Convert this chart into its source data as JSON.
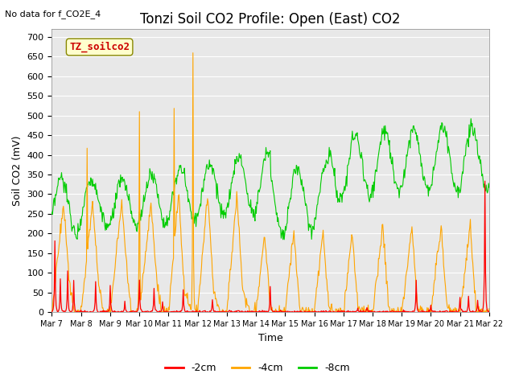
{
  "title": "Tonzi Soil CO2 Profile: Open (East) CO2",
  "subtitle": "No data for f_CO2E_4",
  "ylabel": "Soil CO2 (mV)",
  "xlabel": "Time",
  "legend_label": "TZ_soilco2",
  "series_labels": [
    "-2cm",
    "-4cm",
    "-8cm"
  ],
  "series_colors": [
    "#ff0000",
    "#ffa500",
    "#00cc00"
  ],
  "ylim": [
    0,
    720
  ],
  "yticks": [
    0,
    50,
    100,
    150,
    200,
    250,
    300,
    350,
    400,
    450,
    500,
    550,
    600,
    650,
    700
  ],
  "xtick_labels": [
    "Mar 7",
    "Mar 8",
    "Mar 9",
    "Mar 10",
    "Mar 11",
    "Mar 12",
    "Mar 13",
    "Mar 14",
    "Mar 15",
    "Mar 16",
    "Mar 17",
    "Mar 18",
    "Mar 19",
    "Mar 20",
    "Mar 21",
    "Mar 22"
  ],
  "bg_color": "#ffffff",
  "plot_bg_color": "#e8e8e8",
  "legend_box_facecolor": "#ffffcc",
  "legend_box_edgecolor": "#888800",
  "legend_text_color": "#cc0000",
  "grid_color": "#ffffff",
  "title_fontsize": 12,
  "axis_fontsize": 9,
  "tick_fontsize": 8,
  "n_days": 15,
  "n_pts": 720
}
